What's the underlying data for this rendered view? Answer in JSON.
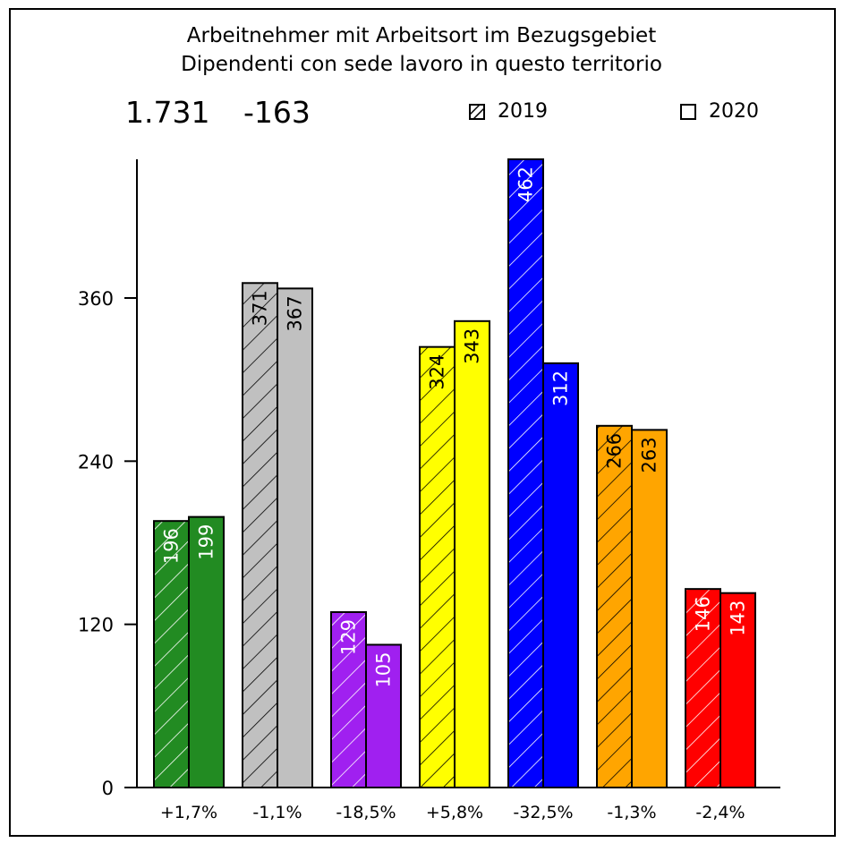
{
  "header": {
    "title_line1": "Arbeitnehmer mit Arbeitsort im Bezugsgebiet",
    "title_line2": "Dipendenti con sede lavoro in questo territorio",
    "total": "1.731",
    "change": "-163"
  },
  "legend": {
    "series_2019": "2019",
    "series_2020": "2020"
  },
  "chart_data": {
    "type": "bar",
    "title": "Arbeitnehmer mit Arbeitsort im Bezugsgebiet / Dipendenti con sede lavoro in questo territorio",
    "categories": [
      "+1,7%",
      "-1,1%",
      "-18,5%",
      "+5,8%",
      "-32,5%",
      "-1,3%",
      "-2,4%"
    ],
    "series": [
      {
        "name": "2019",
        "values": [
          196,
          371,
          129,
          324,
          462,
          266,
          146
        ],
        "pattern": "hatched"
      },
      {
        "name": "2020",
        "values": [
          199,
          367,
          105,
          343,
          312,
          263,
          143
        ],
        "pattern": "solid"
      }
    ],
    "colors": [
      "#228B22",
      "#C0C0C0",
      "#A020F0",
      "#FFFF00",
      "#0000FF",
      "#FFA500",
      "#FF0000"
    ],
    "label_colors": [
      "#ffffff",
      "#000000",
      "#ffffff",
      "#000000",
      "#ffffff",
      "#000000",
      "#ffffff"
    ],
    "yticks": [
      0,
      120,
      240,
      360
    ],
    "ylim": [
      0,
      462
    ],
    "grid": false,
    "legend_position": "top-right"
  }
}
